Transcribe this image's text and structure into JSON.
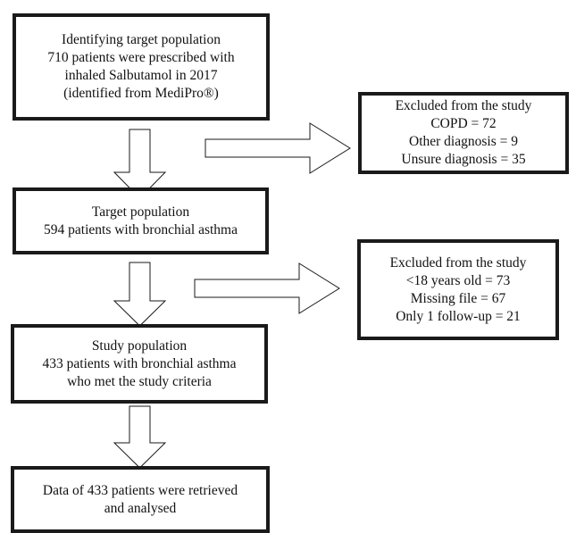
{
  "flowchart": {
    "identify_box": {
      "lines": [
        "Identifying target population",
        "710 patients were prescribed with",
        "inhaled Salbutamol in 2017",
        "(identified from MediPro®)"
      ]
    },
    "exclusion_box_1": {
      "lines": [
        "Excluded from the study",
        "COPD = 72",
        "Other diagnosis = 9",
        "Unsure diagnosis = 35"
      ]
    },
    "target_box": {
      "lines": [
        "Target population",
        "594 patients with bronchial asthma"
      ]
    },
    "exclusion_box_2": {
      "lines": [
        "Excluded from the study",
        "<18 years old = 73",
        "Missing file = 67",
        "Only 1 follow-up = 21"
      ]
    },
    "study_box": {
      "lines": [
        "Study population",
        "433 patients with bronchial asthma",
        "who met the study criteria"
      ]
    },
    "final_box": {
      "lines": [
        "Data of 433 patients were retrieved",
        "and analysed"
      ]
    }
  }
}
